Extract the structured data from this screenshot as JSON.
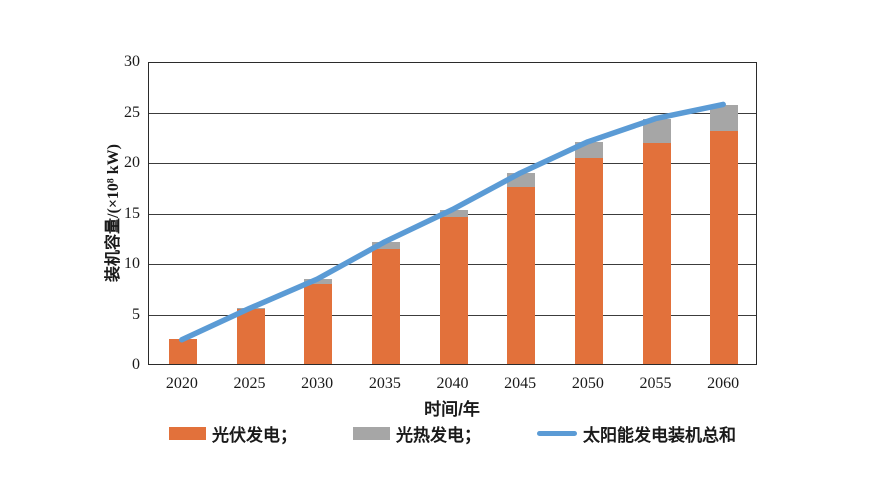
{
  "chart_data": {
    "type": "bar",
    "subtype": "stacked-bars-with-total-line",
    "title": "",
    "xlabel": "时间/年",
    "ylabel": "装机容量/(×10⁸ kW)",
    "ylim": [
      0,
      30
    ],
    "ytick_step": 5,
    "yticks": [
      0,
      5,
      10,
      15,
      20,
      25,
      30
    ],
    "grid": "horizontal",
    "legend_position": "bottom",
    "categories": [
      "2020",
      "2025",
      "2030",
      "2035",
      "2040",
      "2045",
      "2050",
      "2055",
      "2060"
    ],
    "series": [
      {
        "name": "光伏发电",
        "type": "bar",
        "color": "#E2713B",
        "values": [
          2.5,
          5.5,
          8.0,
          11.5,
          14.7,
          17.6,
          20.5,
          22.0,
          23.2
        ]
      },
      {
        "name": "光热发电",
        "type": "bar",
        "color": "#A6A6A6",
        "values": [
          0,
          0.1,
          0.5,
          0.7,
          0.7,
          1.4,
          1.6,
          2.4,
          2.6
        ]
      },
      {
        "name": "太阳能发电装机总和",
        "type": "line",
        "color": "#5B9BD5",
        "values": [
          2.5,
          5.6,
          8.5,
          12.2,
          15.4,
          19.0,
          22.1,
          24.4,
          25.8
        ]
      }
    ]
  },
  "legend": {
    "items": [
      {
        "label": "光伏发电；",
        "swatch": "rect",
        "color": "#E2713B"
      },
      {
        "label": "光热发电；",
        "swatch": "rect",
        "color": "#A6A6A6"
      },
      {
        "label": "太阳能发电装机总和",
        "swatch": "line",
        "color": "#5B9BD5"
      }
    ]
  },
  "colors": {
    "pv_bar": "#E2713B",
    "csp_bar": "#A6A6A6",
    "total_line": "#5B9BD5",
    "axis": "#2b2b2b",
    "text": "#1a1a1a"
  }
}
